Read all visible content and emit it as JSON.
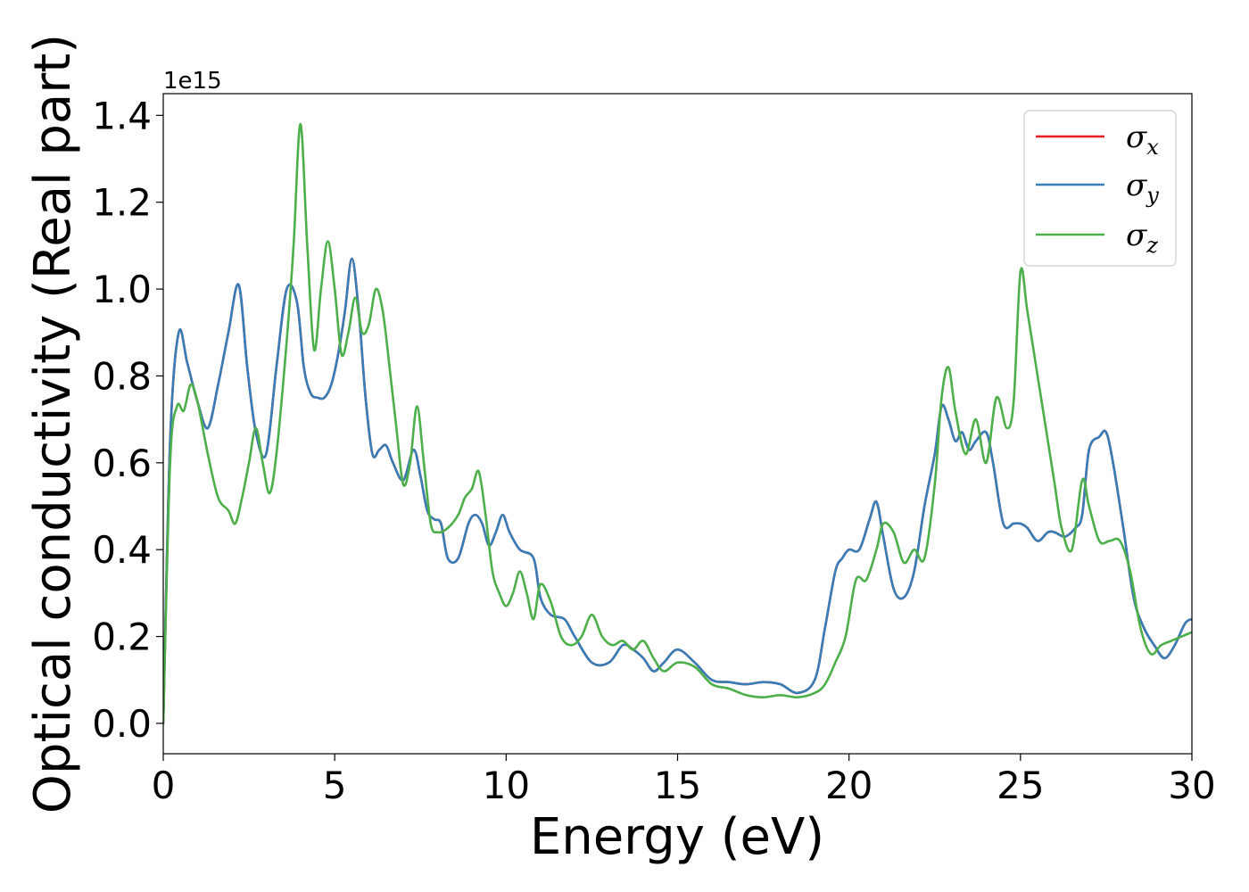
{
  "chart_data": {
    "type": "line",
    "xlabel": "Energy (eV)",
    "ylabel": "Optical conductivity (Real part)",
    "y_offset_label": "1e15",
    "xlim": [
      0,
      30
    ],
    "ylim": [
      -0.07,
      1.45
    ],
    "xticks": [
      0,
      5,
      10,
      15,
      20,
      25,
      30
    ],
    "xtick_labels": [
      "0",
      "5",
      "10",
      "15",
      "20",
      "25",
      "30"
    ],
    "yticks": [
      0.0,
      0.2,
      0.4,
      0.6,
      0.8,
      1.0,
      1.2,
      1.4
    ],
    "ytick_labels": [
      "0.0",
      "0.2",
      "0.4",
      "0.6",
      "0.8",
      "1.0",
      "1.2",
      "1.4"
    ],
    "grid": false,
    "legend_position": "top-right",
    "colors": {
      "x": "#e41a1c",
      "y": "#377eb8",
      "z": "#4daf4a"
    },
    "series": [
      {
        "name": "σ",
        "subscript": "x",
        "color": "#e41a1c",
        "x": [
          0,
          0.2,
          0.45,
          0.7,
          1.0,
          1.3,
          1.6,
          1.9,
          2.2,
          2.45,
          2.7,
          3.0,
          3.3,
          3.6,
          3.9,
          4.1,
          4.3,
          4.5,
          4.7,
          4.9,
          5.1,
          5.3,
          5.5,
          5.7,
          5.9,
          6.1,
          6.3,
          6.5,
          6.7,
          7.0,
          7.3,
          7.5,
          7.7,
          7.9,
          8.1,
          8.3,
          8.6,
          8.9,
          9.1,
          9.3,
          9.5,
          9.7,
          9.9,
          10.1,
          10.4,
          10.8,
          11.0,
          11.3,
          11.7,
          12.0,
          12.5,
          13.0,
          13.4,
          13.7,
          14.0,
          14.3,
          14.6,
          15.0,
          15.5,
          16.0,
          16.5,
          17.0,
          17.5,
          18.0,
          18.5,
          19.0,
          19.3,
          19.6,
          19.8,
          20.0,
          20.3,
          20.6,
          20.8,
          21.0,
          21.3,
          21.6,
          21.9,
          22.2,
          22.5,
          22.7,
          22.9,
          23.1,
          23.3,
          23.5,
          23.7,
          24.0,
          24.2,
          24.5,
          24.8,
          25.0,
          25.2,
          25.5,
          25.8,
          26.0,
          26.3,
          26.6,
          26.8,
          27.0,
          27.3,
          27.5,
          27.7,
          28.0,
          28.3,
          28.6,
          28.9,
          29.2,
          29.5,
          29.8,
          30.0
        ],
        "y": [
          0.0,
          0.65,
          0.9,
          0.83,
          0.74,
          0.68,
          0.78,
          0.9,
          1.01,
          0.82,
          0.67,
          0.62,
          0.82,
          1.0,
          0.97,
          0.82,
          0.76,
          0.75,
          0.75,
          0.78,
          0.85,
          0.95,
          1.07,
          0.95,
          0.75,
          0.62,
          0.63,
          0.64,
          0.6,
          0.56,
          0.63,
          0.57,
          0.49,
          0.47,
          0.46,
          0.38,
          0.38,
          0.46,
          0.48,
          0.46,
          0.41,
          0.44,
          0.48,
          0.44,
          0.4,
          0.38,
          0.29,
          0.25,
          0.24,
          0.2,
          0.14,
          0.14,
          0.18,
          0.17,
          0.15,
          0.12,
          0.14,
          0.17,
          0.14,
          0.1,
          0.095,
          0.09,
          0.095,
          0.09,
          0.07,
          0.1,
          0.22,
          0.35,
          0.38,
          0.4,
          0.4,
          0.47,
          0.51,
          0.43,
          0.31,
          0.29,
          0.35,
          0.5,
          0.62,
          0.73,
          0.7,
          0.65,
          0.67,
          0.63,
          0.65,
          0.67,
          0.6,
          0.46,
          0.46,
          0.46,
          0.45,
          0.42,
          0.44,
          0.44,
          0.43,
          0.45,
          0.48,
          0.63,
          0.66,
          0.67,
          0.6,
          0.45,
          0.29,
          0.22,
          0.18,
          0.15,
          0.18,
          0.23,
          0.24
        ]
      },
      {
        "name": "σ",
        "subscript": "y",
        "color": "#377eb8",
        "x": [
          0,
          0.2,
          0.45,
          0.7,
          1.0,
          1.3,
          1.6,
          1.9,
          2.2,
          2.45,
          2.7,
          3.0,
          3.3,
          3.6,
          3.9,
          4.1,
          4.3,
          4.5,
          4.7,
          4.9,
          5.1,
          5.3,
          5.5,
          5.7,
          5.9,
          6.1,
          6.3,
          6.5,
          6.7,
          7.0,
          7.3,
          7.5,
          7.7,
          7.9,
          8.1,
          8.3,
          8.6,
          8.9,
          9.1,
          9.3,
          9.5,
          9.7,
          9.9,
          10.1,
          10.4,
          10.8,
          11.0,
          11.3,
          11.7,
          12.0,
          12.5,
          13.0,
          13.4,
          13.7,
          14.0,
          14.3,
          14.6,
          15.0,
          15.5,
          16.0,
          16.5,
          17.0,
          17.5,
          18.0,
          18.5,
          19.0,
          19.3,
          19.6,
          19.8,
          20.0,
          20.3,
          20.6,
          20.8,
          21.0,
          21.3,
          21.6,
          21.9,
          22.2,
          22.5,
          22.7,
          22.9,
          23.1,
          23.3,
          23.5,
          23.7,
          24.0,
          24.2,
          24.5,
          24.8,
          25.0,
          25.2,
          25.5,
          25.8,
          26.0,
          26.3,
          26.6,
          26.8,
          27.0,
          27.3,
          27.5,
          27.7,
          28.0,
          28.3,
          28.6,
          28.9,
          29.2,
          29.5,
          29.8,
          30.0
        ],
        "y": [
          0.0,
          0.65,
          0.9,
          0.83,
          0.74,
          0.68,
          0.78,
          0.9,
          1.01,
          0.82,
          0.67,
          0.62,
          0.82,
          1.0,
          0.97,
          0.82,
          0.76,
          0.75,
          0.75,
          0.78,
          0.85,
          0.95,
          1.07,
          0.95,
          0.75,
          0.62,
          0.63,
          0.64,
          0.6,
          0.56,
          0.63,
          0.57,
          0.49,
          0.47,
          0.46,
          0.38,
          0.38,
          0.46,
          0.48,
          0.46,
          0.41,
          0.44,
          0.48,
          0.44,
          0.4,
          0.38,
          0.29,
          0.25,
          0.24,
          0.2,
          0.14,
          0.14,
          0.18,
          0.17,
          0.15,
          0.12,
          0.14,
          0.17,
          0.14,
          0.1,
          0.095,
          0.09,
          0.095,
          0.09,
          0.07,
          0.1,
          0.22,
          0.35,
          0.38,
          0.4,
          0.4,
          0.47,
          0.51,
          0.43,
          0.31,
          0.29,
          0.35,
          0.5,
          0.62,
          0.73,
          0.7,
          0.65,
          0.67,
          0.63,
          0.65,
          0.67,
          0.6,
          0.46,
          0.46,
          0.46,
          0.45,
          0.42,
          0.44,
          0.44,
          0.43,
          0.45,
          0.48,
          0.63,
          0.66,
          0.67,
          0.6,
          0.45,
          0.29,
          0.22,
          0.18,
          0.15,
          0.18,
          0.23,
          0.24
        ]
      },
      {
        "name": "σ",
        "subscript": "z",
        "color": "#4daf4a",
        "x": [
          0,
          0.2,
          0.4,
          0.6,
          0.8,
          1.0,
          1.3,
          1.6,
          1.9,
          2.1,
          2.3,
          2.5,
          2.7,
          2.9,
          3.1,
          3.3,
          3.6,
          3.8,
          4.0,
          4.2,
          4.4,
          4.6,
          4.8,
          5.0,
          5.2,
          5.4,
          5.6,
          5.8,
          6.0,
          6.2,
          6.4,
          6.6,
          6.8,
          7.0,
          7.2,
          7.4,
          7.6,
          7.8,
          8.0,
          8.3,
          8.6,
          8.8,
          9.0,
          9.2,
          9.4,
          9.6,
          9.8,
          10.0,
          10.2,
          10.4,
          10.6,
          10.8,
          11.0,
          11.3,
          11.6,
          11.9,
          12.2,
          12.5,
          12.8,
          13.1,
          13.4,
          13.7,
          14.0,
          14.3,
          14.6,
          15.0,
          15.5,
          16.0,
          16.5,
          17.0,
          17.5,
          18.0,
          18.5,
          19.0,
          19.3,
          19.6,
          19.9,
          20.2,
          20.5,
          20.8,
          21.0,
          21.3,
          21.6,
          21.9,
          22.2,
          22.5,
          22.7,
          22.9,
          23.1,
          23.4,
          23.7,
          24.0,
          24.3,
          24.6,
          24.8,
          25.0,
          25.2,
          25.5,
          25.8,
          26.0,
          26.2,
          26.5,
          26.8,
          27.0,
          27.3,
          27.6,
          27.9,
          28.2,
          28.5,
          28.8,
          29.1,
          29.4,
          29.7,
          30.0
        ],
        "y": [
          0.0,
          0.6,
          0.73,
          0.72,
          0.78,
          0.74,
          0.62,
          0.52,
          0.49,
          0.46,
          0.52,
          0.6,
          0.68,
          0.6,
          0.53,
          0.62,
          0.88,
          1.1,
          1.38,
          1.1,
          0.86,
          1.0,
          1.11,
          1.0,
          0.85,
          0.9,
          0.98,
          0.9,
          0.92,
          1.0,
          0.95,
          0.82,
          0.68,
          0.55,
          0.6,
          0.73,
          0.6,
          0.46,
          0.44,
          0.45,
          0.48,
          0.52,
          0.54,
          0.58,
          0.48,
          0.35,
          0.3,
          0.27,
          0.3,
          0.35,
          0.3,
          0.24,
          0.32,
          0.28,
          0.2,
          0.18,
          0.2,
          0.25,
          0.2,
          0.18,
          0.19,
          0.17,
          0.19,
          0.15,
          0.12,
          0.14,
          0.13,
          0.09,
          0.08,
          0.065,
          0.06,
          0.065,
          0.06,
          0.07,
          0.09,
          0.14,
          0.2,
          0.33,
          0.33,
          0.4,
          0.46,
          0.44,
          0.37,
          0.4,
          0.38,
          0.55,
          0.75,
          0.82,
          0.72,
          0.62,
          0.7,
          0.6,
          0.75,
          0.68,
          0.74,
          1.04,
          0.95,
          0.8,
          0.65,
          0.55,
          0.45,
          0.4,
          0.56,
          0.5,
          0.42,
          0.42,
          0.42,
          0.35,
          0.22,
          0.16,
          0.18,
          0.19,
          0.2,
          0.21
        ]
      }
    ]
  }
}
